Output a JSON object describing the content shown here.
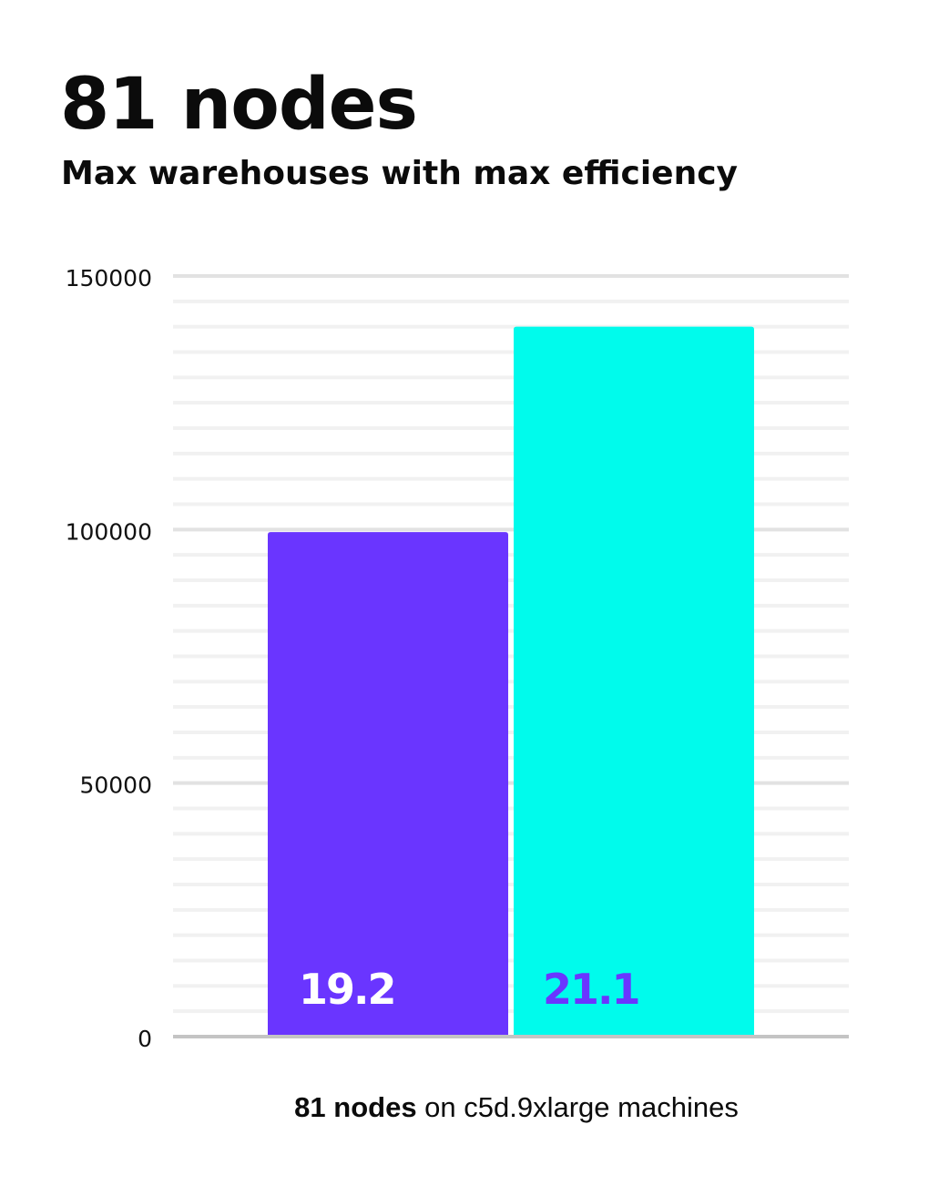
{
  "header": {
    "title": "81 nodes",
    "subtitle": "Max warehouses with max efficiency"
  },
  "caption": {
    "bold": "81 nodes",
    "rest": " on c5d.9xlarge machines"
  },
  "chart_data": {
    "type": "bar",
    "title": "81 nodes",
    "subtitle": "Max warehouses with max efficiency",
    "xlabel": "81 nodes on c5d.9xlarge machines",
    "ylabel": "",
    "ylim": [
      0,
      150000
    ],
    "yticks": [
      0,
      50000,
      100000,
      150000
    ],
    "minor_grid_step": 5000,
    "grid": true,
    "bars": [
      {
        "value": 99500,
        "label": "19.2",
        "color": "#6a35ff",
        "label_color": "#ffffff"
      },
      {
        "value": 140000,
        "label": "21.1",
        "color": "#00fbec",
        "label_color": "#6a35ff"
      }
    ]
  }
}
